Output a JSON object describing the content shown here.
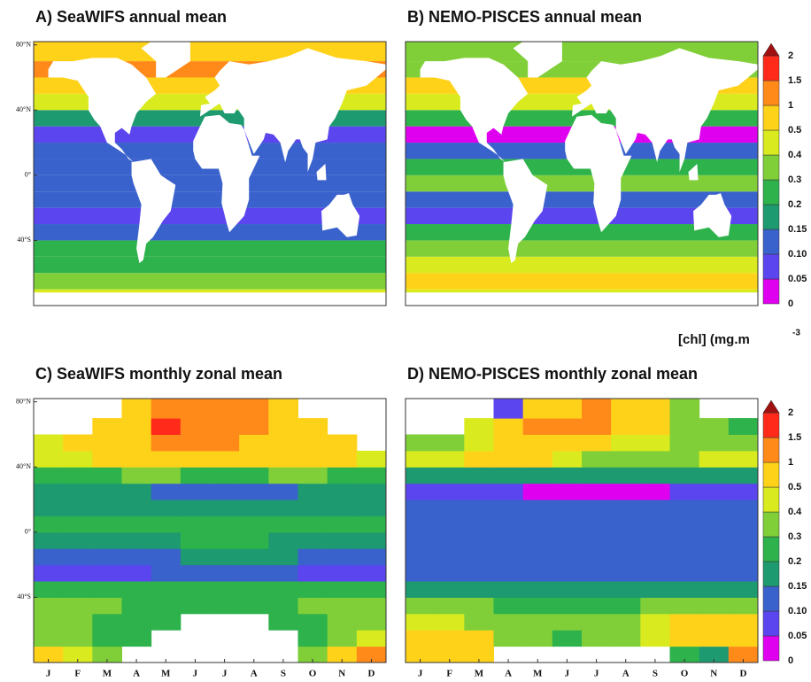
{
  "colorbar": {
    "levels": [
      0,
      0.05,
      {
        "value": 0.1,
        "label": "0.10"
      },
      0.15,
      0.2,
      0.3,
      0.4,
      0.5,
      1,
      1.5,
      2
    ],
    "colors": [
      "#e000f0",
      "#5b45ee",
      "#3a62cc",
      "#1e9a70",
      "#2db24c",
      "#80cf38",
      "#d9eb1e",
      "#ffd21a",
      "#ff8a1a",
      "#ff2a1a",
      "#a01010"
    ],
    "label": "[chl] (mg.m",
    "label_exponent": "-3"
  },
  "chart_data": [
    {
      "type": "map",
      "title": "A) SeaWIFS annual mean",
      "lat_bands": [
        -80,
        -70,
        -60,
        -50,
        -40,
        -30,
        -20,
        -10,
        0,
        10,
        20,
        30,
        40,
        50,
        60,
        70,
        82
      ],
      "values": [
        0.4,
        0.3,
        0.25,
        0.2,
        0.12,
        0.08,
        0.1,
        0.12,
        0.12,
        0.1,
        0.08,
        0.15,
        0.4,
        0.5,
        1.2,
        0.6
      ],
      "ylim": [
        -80,
        82
      ],
      "yticks": [
        {
          "value": 80,
          "label": "80°N"
        },
        {
          "value": 40,
          "label": "40°N"
        },
        {
          "value": 0,
          "label": "0°"
        },
        {
          "value": -40,
          "label": "40°S"
        }
      ]
    },
    {
      "type": "map",
      "title": "B) NEMO-PISCES annual mean",
      "lat_bands": [
        -80,
        -70,
        -60,
        -50,
        -40,
        -30,
        -20,
        -10,
        0,
        10,
        20,
        30,
        40,
        50,
        60,
        70,
        82
      ],
      "values": [
        0.4,
        0.5,
        0.45,
        0.35,
        0.2,
        0.08,
        0.1,
        0.3,
        0.25,
        0.1,
        0.04,
        0.2,
        0.45,
        0.5,
        0.3,
        0.3
      ],
      "ylim": [
        -80,
        82
      ]
    },
    {
      "type": "heatmap",
      "title": "C) SeaWIFS monthly zonal mean",
      "categories": [
        "J",
        "F",
        "M",
        "A",
        "M",
        "J",
        "J",
        "A",
        "S",
        "O",
        "N",
        "D"
      ],
      "lat_bands": [
        -80,
        -70,
        -60,
        -50,
        -40,
        -30,
        -20,
        -10,
        0,
        10,
        20,
        30,
        40,
        50,
        60,
        70,
        82
      ],
      "values": [
        [
          0.5,
          0.4,
          0.3,
          null,
          null,
          null,
          null,
          null,
          null,
          0.3,
          0.5,
          1.2
        ],
        [
          0.3,
          0.3,
          0.2,
          0.25,
          null,
          null,
          null,
          null,
          null,
          0.25,
          0.3,
          0.4
        ],
        [
          0.3,
          0.3,
          0.2,
          0.2,
          0.2,
          null,
          null,
          null,
          0.2,
          0.25,
          0.3,
          0.3
        ],
        [
          0.35,
          0.3,
          0.3,
          0.25,
          0.25,
          0.25,
          0.25,
          0.25,
          0.25,
          0.3,
          0.35,
          0.35
        ],
        [
          0.2,
          0.2,
          0.2,
          0.2,
          0.25,
          0.25,
          0.25,
          0.25,
          0.2,
          0.2,
          0.2,
          0.2
        ],
        [
          0.08,
          0.08,
          0.08,
          0.09,
          0.1,
          0.12,
          0.12,
          0.12,
          0.1,
          0.08,
          0.08,
          0.08
        ],
        [
          0.12,
          0.12,
          0.12,
          0.13,
          0.14,
          0.16,
          0.17,
          0.16,
          0.15,
          0.13,
          0.12,
          0.12
        ],
        [
          0.17,
          0.17,
          0.17,
          0.17,
          0.18,
          0.2,
          0.2,
          0.2,
          0.18,
          0.17,
          0.17,
          0.17
        ],
        [
          0.2,
          0.2,
          0.2,
          0.2,
          0.2,
          0.22,
          0.22,
          0.22,
          0.2,
          0.2,
          0.2,
          0.2
        ],
        [
          0.17,
          0.17,
          0.17,
          0.17,
          0.17,
          0.17,
          0.17,
          0.17,
          0.17,
          0.17,
          0.17,
          0.17
        ],
        [
          0.15,
          0.15,
          0.15,
          0.15,
          0.12,
          0.12,
          0.12,
          0.12,
          0.12,
          0.15,
          0.15,
          0.15
        ],
        [
          0.25,
          0.25,
          0.25,
          0.3,
          0.3,
          0.25,
          0.25,
          0.25,
          0.3,
          0.3,
          0.25,
          0.25
        ],
        [
          0.45,
          0.45,
          0.6,
          0.7,
          0.8,
          0.6,
          0.5,
          0.5,
          0.6,
          0.6,
          0.5,
          0.45
        ],
        [
          0.45,
          0.5,
          0.6,
          0.8,
          1.2,
          1.1,
          1.0,
          0.9,
          0.8,
          0.6,
          0.5,
          null
        ],
        [
          null,
          null,
          0.5,
          0.7,
          1.6,
          1.2,
          1.2,
          1.1,
          0.9,
          0.6,
          null,
          null
        ],
        [
          null,
          null,
          null,
          0.6,
          1.1,
          1.2,
          1.2,
          1.1,
          0.9,
          null,
          null,
          null
        ]
      ],
      "ylim": [
        -80,
        82
      ],
      "yticks": [
        {
          "value": 80,
          "label": "80°N"
        },
        {
          "value": 40,
          "label": "40°N"
        },
        {
          "value": 0,
          "label": "0°"
        },
        {
          "value": -40,
          "label": "40°S"
        }
      ]
    },
    {
      "type": "heatmap",
      "title": "D) NEMO-PISCES monthly zonal mean",
      "categories": [
        "J",
        "F",
        "M",
        "A",
        "M",
        "J",
        "J",
        "A",
        "S",
        "O",
        "N",
        "D"
      ],
      "lat_bands": [
        -80,
        -70,
        -60,
        -50,
        -40,
        -30,
        -20,
        -10,
        0,
        10,
        20,
        30,
        40,
        50,
        60,
        70,
        82
      ],
      "values": [
        [
          0.8,
          0.8,
          0.5,
          null,
          null,
          null,
          null,
          null,
          null,
          0.2,
          0.15,
          1.2
        ],
        [
          0.6,
          0.6,
          0.5,
          0.3,
          0.3,
          0.25,
          0.3,
          0.3,
          0.4,
          0.6,
          0.8,
          0.9
        ],
        [
          0.45,
          0.4,
          0.35,
          0.3,
          0.3,
          0.3,
          0.3,
          0.3,
          0.45,
          0.6,
          0.6,
          0.6
        ],
        [
          0.3,
          0.3,
          0.3,
          0.25,
          0.25,
          0.25,
          0.25,
          0.25,
          0.3,
          0.35,
          0.35,
          0.35
        ],
        [
          0.17,
          0.17,
          0.17,
          0.17,
          0.17,
          0.17,
          0.17,
          0.17,
          0.17,
          0.17,
          0.17,
          0.17
        ],
        [
          0.12,
          0.12,
          0.12,
          0.12,
          0.12,
          0.12,
          0.12,
          0.12,
          0.12,
          0.12,
          0.12,
          0.12
        ],
        [
          0.11,
          0.11,
          0.11,
          0.11,
          0.11,
          0.11,
          0.11,
          0.11,
          0.11,
          0.11,
          0.11,
          0.11
        ],
        [
          0.13,
          0.13,
          0.13,
          0.13,
          0.13,
          0.13,
          0.13,
          0.13,
          0.13,
          0.13,
          0.13,
          0.13
        ],
        [
          0.12,
          0.12,
          0.12,
          0.12,
          0.12,
          0.12,
          0.12,
          0.12,
          0.12,
          0.12,
          0.12,
          0.12
        ],
        [
          0.1,
          0.1,
          0.1,
          0.1,
          0.1,
          0.1,
          0.1,
          0.1,
          0.1,
          0.1,
          0.1,
          0.1
        ],
        [
          0.08,
          0.08,
          0.08,
          0.08,
          0.04,
          0.04,
          0.04,
          0.04,
          0.04,
          0.08,
          0.08,
          0.08
        ],
        [
          0.15,
          0.15,
          0.15,
          0.15,
          0.15,
          0.15,
          0.15,
          0.15,
          0.15,
          0.15,
          0.15,
          0.15
        ],
        [
          0.45,
          0.45,
          0.5,
          0.6,
          0.55,
          0.4,
          0.35,
          0.3,
          0.3,
          0.35,
          0.4,
          0.45
        ],
        [
          0.35,
          0.35,
          0.4,
          0.7,
          0.8,
          0.6,
          0.55,
          0.45,
          0.4,
          0.35,
          0.3,
          0.3
        ],
        [
          null,
          null,
          0.4,
          0.5,
          1.2,
          1.2,
          1.0,
          0.7,
          0.7,
          0.35,
          0.3,
          0.25
        ],
        [
          null,
          null,
          null,
          0.08,
          0.6,
          0.8,
          1.2,
          0.9,
          0.8,
          0.3,
          null,
          null
        ]
      ],
      "ylim": [
        -80,
        82
      ]
    }
  ]
}
